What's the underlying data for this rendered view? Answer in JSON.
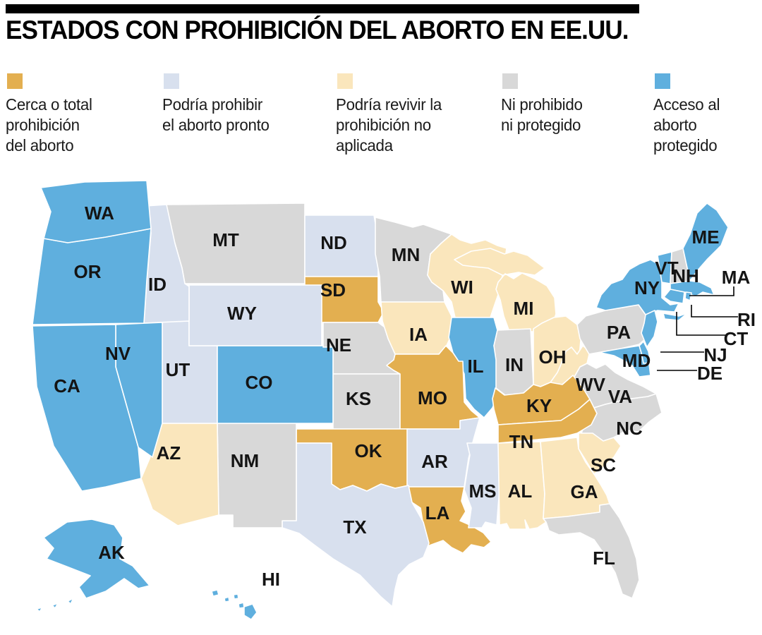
{
  "header": {
    "title": "ESTADOS CON PROHIBICIÓN DEL ABORTO EN EE.UU."
  },
  "legend": {
    "categories": [
      {
        "key": "ban",
        "label": "Cerca o total\nprohibición\ndel aborto",
        "color": "#E3AF50"
      },
      {
        "key": "soon",
        "label": "Podría prohibir\nel aborto pronto",
        "color": "#D8E0EE"
      },
      {
        "key": "revive",
        "label": "Podría revivir la\nprohibición no\naplicada",
        "color": "#FAE6BC"
      },
      {
        "key": "neither",
        "label": "Ni prohibido\nni protegido",
        "color": "#D8D8D8"
      },
      {
        "key": "protected",
        "label": "Acceso al\naborto\nprotegido",
        "color": "#5FAFDE"
      }
    ]
  },
  "map": {
    "states": [
      {
        "abbr": "WA",
        "category": "protected"
      },
      {
        "abbr": "OR",
        "category": "protected"
      },
      {
        "abbr": "CA",
        "category": "protected"
      },
      {
        "abbr": "NV",
        "category": "protected"
      },
      {
        "abbr": "ID",
        "category": "soon"
      },
      {
        "abbr": "MT",
        "category": "neither"
      },
      {
        "abbr": "WY",
        "category": "soon"
      },
      {
        "abbr": "UT",
        "category": "soon"
      },
      {
        "abbr": "CO",
        "category": "protected"
      },
      {
        "abbr": "AZ",
        "category": "revive"
      },
      {
        "abbr": "NM",
        "category": "neither"
      },
      {
        "abbr": "ND",
        "category": "soon"
      },
      {
        "abbr": "SD",
        "category": "ban"
      },
      {
        "abbr": "NE",
        "category": "neither"
      },
      {
        "abbr": "KS",
        "category": "neither"
      },
      {
        "abbr": "OK",
        "category": "ban"
      },
      {
        "abbr": "TX",
        "category": "soon"
      },
      {
        "abbr": "MN",
        "category": "neither"
      },
      {
        "abbr": "IA",
        "category": "revive"
      },
      {
        "abbr": "MO",
        "category": "ban"
      },
      {
        "abbr": "AR",
        "category": "soon"
      },
      {
        "abbr": "LA",
        "category": "ban"
      },
      {
        "abbr": "WI",
        "category": "revive"
      },
      {
        "abbr": "IL",
        "category": "protected"
      },
      {
        "abbr": "IN",
        "category": "neither"
      },
      {
        "abbr": "MI",
        "category": "revive"
      },
      {
        "abbr": "OH",
        "category": "revive"
      },
      {
        "abbr": "KY",
        "category": "ban"
      },
      {
        "abbr": "TN",
        "category": "ban"
      },
      {
        "abbr": "MS",
        "category": "soon"
      },
      {
        "abbr": "AL",
        "category": "revive"
      },
      {
        "abbr": "GA",
        "category": "revive"
      },
      {
        "abbr": "FL",
        "category": "neither"
      },
      {
        "abbr": "SC",
        "category": "revive"
      },
      {
        "abbr": "NC",
        "category": "neither"
      },
      {
        "abbr": "VA",
        "category": "neither"
      },
      {
        "abbr": "WV",
        "category": "revive"
      },
      {
        "abbr": "PA",
        "category": "neither"
      },
      {
        "abbr": "NY",
        "category": "protected"
      },
      {
        "abbr": "VT",
        "category": "protected"
      },
      {
        "abbr": "NH",
        "category": "neither"
      },
      {
        "abbr": "ME",
        "category": "protected"
      },
      {
        "abbr": "MA",
        "category": "protected"
      },
      {
        "abbr": "RI",
        "category": "protected"
      },
      {
        "abbr": "CT",
        "category": "protected"
      },
      {
        "abbr": "NJ",
        "category": "protected"
      },
      {
        "abbr": "DE",
        "category": "protected"
      },
      {
        "abbr": "MD",
        "category": "protected"
      },
      {
        "abbr": "AK",
        "category": "protected"
      },
      {
        "abbr": "HI",
        "category": "protected"
      }
    ]
  }
}
